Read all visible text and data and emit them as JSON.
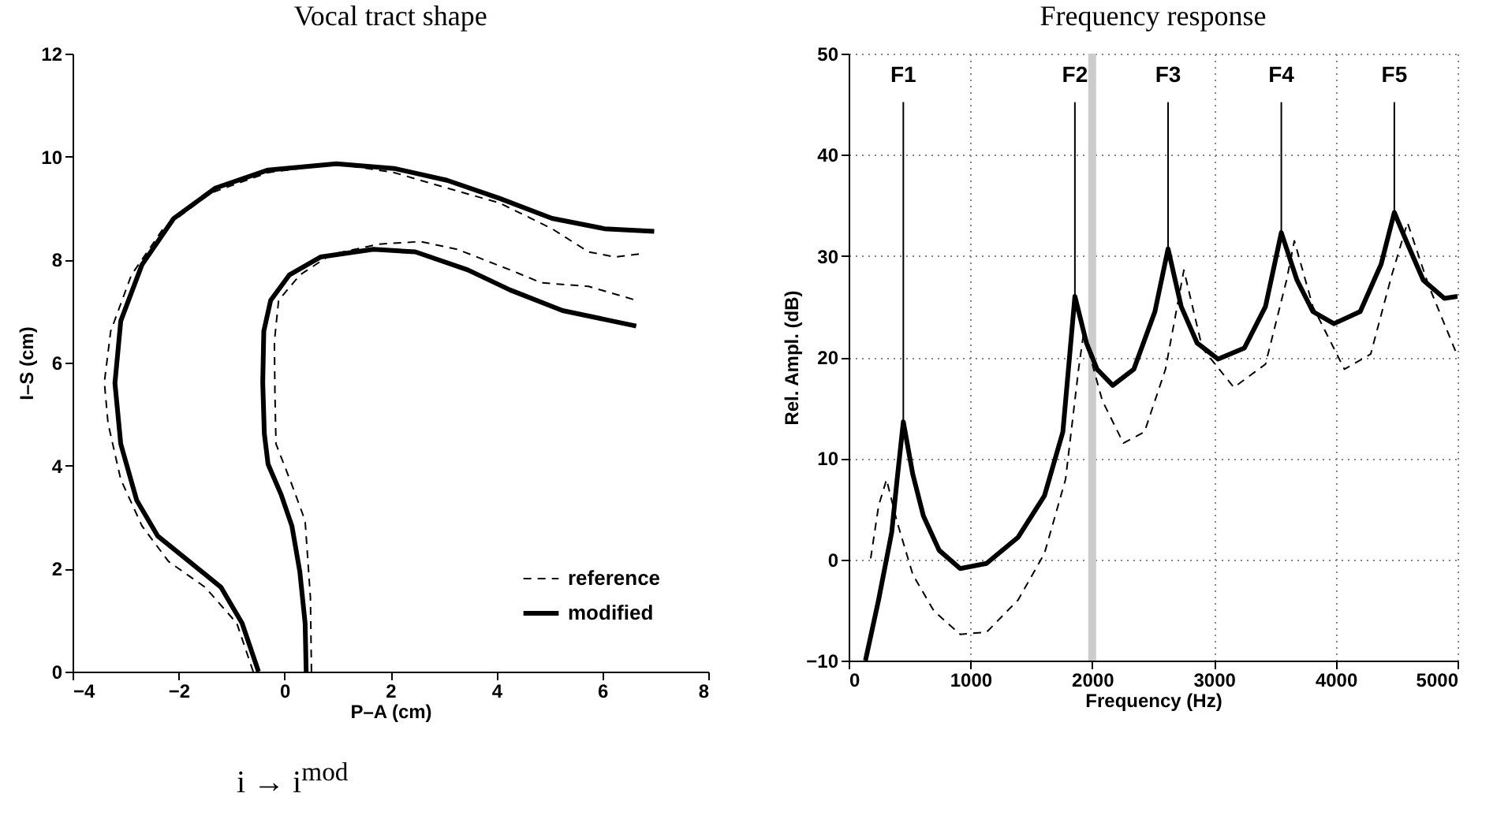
{
  "chart_data": [
    {
      "type": "line",
      "title": "Vocal tract shape",
      "xlabel": "P–A (cm)",
      "ylabel": "I–S (cm)",
      "xlim": [
        -4,
        8
      ],
      "xticks": [
        -4,
        -2,
        0,
        2,
        4,
        6,
        8
      ],
      "ylim": [
        0,
        12
      ],
      "yticks": [
        0,
        2,
        4,
        6,
        8,
        10,
        12
      ],
      "grid": false,
      "legend": "bottom right",
      "annotations": [
        "i → i$^{mod}$"
      ],
      "series": [
        {
          "name": "reference",
          "color": "#000000",
          "line_style": "dashed",
          "x": [
            -0.59,
            -0.9,
            -1.5,
            -2.19,
            -2.69,
            -3.09,
            -3.33,
            -3.4,
            -3.28,
            -2.89,
            -2.29,
            -1.4,
            -0.31,
            0.98,
            2.07,
            3.07,
            4.06,
            5.05,
            5.74,
            6.24,
            6.79,
            null,
            0.51,
            0.49,
            0.39,
            0.14,
            -0.16,
            -0.18,
            -0.19,
            -0.11,
            0.29,
            0.88,
            1.78,
            2.57,
            3.26,
            4.26,
            4.85,
            5.74,
            6.64
          ],
          "values": [
            0,
            0.94,
            1.64,
            2.14,
            2.83,
            3.73,
            4.82,
            5.62,
            6.61,
            7.7,
            8.6,
            9.29,
            9.69,
            9.86,
            9.69,
            9.39,
            9.1,
            8.6,
            8.15,
            8.05,
            8.12,
            null,
            0,
            1.44,
            2.93,
            3.63,
            4.42,
            5.42,
            6.41,
            7.21,
            7.7,
            8.1,
            8.3,
            8.35,
            8.2,
            7.8,
            7.55,
            7.48,
            7.21
          ]
        },
        {
          "name": "modified",
          "color": "#000000",
          "line_style": "solid",
          "x": [
            -0.49,
            -0.8,
            -1.2,
            -1.8,
            -2.39,
            -2.79,
            -3.09,
            -3.2,
            -3.09,
            -2.69,
            -2.09,
            -1.3,
            -0.31,
            0.98,
            2.07,
            3.07,
            4.06,
            5.05,
            6.04,
            6.98,
            null,
            0.41,
            0.39,
            0.29,
            0.14,
            -0.06,
            -0.31,
            -0.38,
            -0.41,
            -0.39,
            -0.26,
            0.09,
            0.68,
            1.68,
            2.47,
            3.46,
            4.26,
            5.25,
            6.64
          ],
          "values": [
            0,
            0.94,
            1.64,
            2.14,
            2.63,
            3.33,
            4.42,
            5.6,
            6.81,
            7.9,
            8.8,
            9.39,
            9.74,
            9.86,
            9.77,
            9.54,
            9.19,
            8.8,
            8.6,
            8.55,
            null,
            0,
            0.94,
            1.94,
            2.83,
            3.43,
            4.03,
            4.62,
            5.62,
            6.61,
            7.21,
            7.7,
            8.05,
            8.2,
            8.15,
            7.8,
            7.41,
            7.01,
            6.71
          ]
        }
      ]
    },
    {
      "type": "line",
      "title": "Frequency response",
      "xlabel": "Frequency (Hz)",
      "ylabel": "Rel. Ampl. (dB)",
      "xlim": [
        0,
        5000
      ],
      "xticks": [
        0,
        1000,
        2000,
        3000,
        4000,
        5000
      ],
      "ylim": [
        -10,
        50
      ],
      "yticks": [
        -10,
        0,
        10,
        20,
        30,
        40,
        50
      ],
      "grid": true,
      "ref_lines": [
        {
          "axis": "x",
          "value": 2000,
          "color": "#cccccc"
        }
      ],
      "annotations": [
        {
          "text": "F1",
          "x": 449,
          "y": 13.6
        },
        {
          "text": "F2",
          "x": 1858,
          "y": 26.0
        },
        {
          "text": "F3",
          "x": 2623,
          "y": 30.7
        },
        {
          "text": "F4",
          "x": 3553,
          "y": 32.3
        },
        {
          "text": "F5",
          "x": 4481,
          "y": 34.3
        }
      ],
      "series": [
        {
          "color": "#000000",
          "line_style": "dashed",
          "x": [
            181,
            246,
            311,
            398,
            527,
            700,
            916,
            1132,
            1392,
            1608,
            1781,
            1888,
            1930,
            2083,
            2256,
            2429,
            2602,
            2753,
            2904,
            3163,
            3423,
            3596,
            3660,
            3812,
            4071,
            4287,
            4460,
            4589,
            4762,
            5000
          ],
          "values": [
            0.1,
            5.3,
            7.9,
            3.7,
            -1.5,
            -5.1,
            -7.4,
            -7.2,
            -4.0,
            0.6,
            7.9,
            18.8,
            22.4,
            15.7,
            11.5,
            12.6,
            18.8,
            28.6,
            20.9,
            17.0,
            19.3,
            27.6,
            31.5,
            25.0,
            18.8,
            20.3,
            28.1,
            33.3,
            27.1,
            20.1
          ]
        },
        {
          "color": "#000000",
          "line_style": "solid",
          "x": [
            138,
            246,
            354,
            398,
            449,
            527,
            614,
            743,
            916,
            1132,
            1392,
            1608,
            1759,
            1858,
            1953,
            2040,
            2169,
            2342,
            2515,
            2623,
            2731,
            2861,
            3034,
            3250,
            3423,
            3553,
            3682,
            3812,
            3985,
            4201,
            4373,
            4481,
            4589,
            4719,
            4892,
            5000
          ],
          "values": [
            -10,
            -4.0,
            2.7,
            7.9,
            13.6,
            8.4,
            4.3,
            0.9,
            -0.9,
            -0.4,
            2.2,
            6.3,
            12.6,
            26.0,
            21.4,
            18.8,
            17.2,
            18.8,
            24.5,
            30.7,
            25.0,
            21.4,
            19.8,
            20.9,
            25.0,
            32.3,
            27.6,
            24.5,
            23.3,
            24.5,
            29.2,
            34.3,
            31.2,
            27.6,
            25.8,
            26.0
          ]
        }
      ]
    }
  ]
}
